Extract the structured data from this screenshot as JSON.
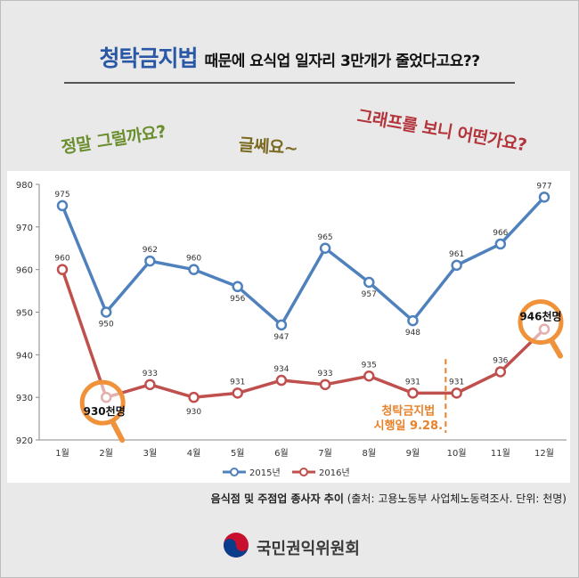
{
  "header": {
    "title_main": "청탁금지법",
    "title_rest": "때문에 요식업 일자리 3만개가 줄었다고요??"
  },
  "bubbles": {
    "q1": "정말 그럴까요?",
    "q2": "글쎄요~",
    "q3": "그래프를 보니 어떤가요?"
  },
  "annotations": {
    "low_label": "930천명",
    "high_label": "946천명",
    "law_line1": "청탁금지법",
    "law_line2": "시행일 9.28."
  },
  "colors": {
    "series_2015": "#4f81bd",
    "series_2016": "#c0504d",
    "highlight": "#f0923a",
    "law": "#e8822a"
  },
  "chart_data": {
    "type": "line",
    "title": "음식점 및 주점업 종사자 추이",
    "categories": [
      "1월",
      "2월",
      "3월",
      "4월",
      "5월",
      "6월",
      "7월",
      "8월",
      "9월",
      "10월",
      "11월",
      "12월"
    ],
    "series": [
      {
        "name": "2015년",
        "values": [
          975,
          950,
          962,
          960,
          956,
          947,
          965,
          957,
          948,
          961,
          966,
          977
        ]
      },
      {
        "name": "2016년",
        "values": [
          960,
          930,
          933,
          930,
          931,
          934,
          933,
          935,
          931,
          931,
          936,
          946
        ]
      }
    ],
    "ylim": [
      920,
      980
    ],
    "yticks": [
      920,
      930,
      940,
      950,
      960,
      970,
      980
    ],
    "xlabel": "",
    "ylabel": "",
    "legend": "bottom-center",
    "grid": false
  },
  "source": {
    "title": "음식점 및 주점업 종사자 추이",
    "detail": "(출처: 고용노동부 사업체노동력조사. 단위: 천명)"
  },
  "footer": {
    "org": "국민권익위원회"
  }
}
